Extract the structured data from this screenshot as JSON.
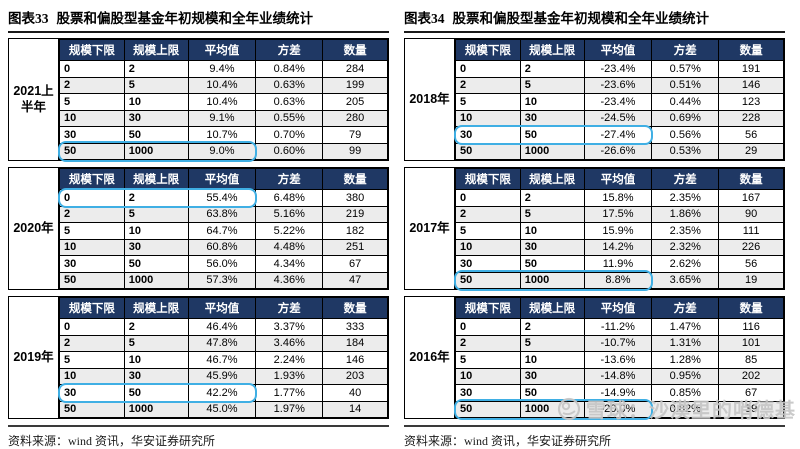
{
  "colors": {
    "header_bg": "#1F3864",
    "header_text": "#FFFFFF",
    "row_alt": "#ECECEC",
    "highlight": "#3FAFE4",
    "watermark": "#C6C6C6"
  },
  "panels": [
    {
      "title_label": "图表33",
      "title_text": "股票和偏股型基金年初规模和全年业绩统计",
      "columns": [
        "规模下限",
        "规模上限",
        "平均值",
        "方差",
        "数量"
      ],
      "tables": [
        {
          "year": "2021上半年",
          "highlight_row": 5,
          "rows": [
            [
              "0",
              "2",
              "9.4%",
              "0.84%",
              "284"
            ],
            [
              "2",
              "5",
              "10.4%",
              "0.63%",
              "199"
            ],
            [
              "5",
              "10",
              "10.4%",
              "0.63%",
              "205"
            ],
            [
              "10",
              "30",
              "9.1%",
              "0.55%",
              "280"
            ],
            [
              "30",
              "50",
              "10.7%",
              "0.70%",
              "79"
            ],
            [
              "50",
              "1000",
              "9.0%",
              "0.60%",
              "99"
            ]
          ]
        },
        {
          "year": "2020年",
          "highlight_row": 0,
          "rows": [
            [
              "0",
              "2",
              "55.4%",
              "6.48%",
              "380"
            ],
            [
              "2",
              "5",
              "63.8%",
              "5.16%",
              "219"
            ],
            [
              "5",
              "10",
              "64.7%",
              "5.22%",
              "182"
            ],
            [
              "10",
              "30",
              "60.8%",
              "4.48%",
              "251"
            ],
            [
              "30",
              "50",
              "56.0%",
              "4.34%",
              "67"
            ],
            [
              "50",
              "1000",
              "57.3%",
              "4.36%",
              "47"
            ]
          ]
        },
        {
          "year": "2019年",
          "highlight_row": 4,
          "rows": [
            [
              "0",
              "2",
              "46.4%",
              "3.37%",
              "333"
            ],
            [
              "2",
              "5",
              "47.8%",
              "3.46%",
              "184"
            ],
            [
              "5",
              "10",
              "46.7%",
              "2.24%",
              "146"
            ],
            [
              "10",
              "30",
              "45.9%",
              "1.93%",
              "203"
            ],
            [
              "30",
              "50",
              "42.2%",
              "1.77%",
              "40"
            ],
            [
              "50",
              "1000",
              "45.0%",
              "1.97%",
              "14"
            ]
          ]
        }
      ],
      "source": "资料来源：wind 资讯，华安证券研究所"
    },
    {
      "title_label": "图表34",
      "title_text": "股票和偏股型基金年初规模和全年业绩统计",
      "columns": [
        "规模下限",
        "规模上限",
        "平均值",
        "方差",
        "数量"
      ],
      "tables": [
        {
          "year": "2018年",
          "highlight_row": 4,
          "rows": [
            [
              "0",
              "2",
              "-23.4%",
              "0.57%",
              "191"
            ],
            [
              "2",
              "5",
              "-23.6%",
              "0.51%",
              "146"
            ],
            [
              "5",
              "10",
              "-23.4%",
              "0.44%",
              "123"
            ],
            [
              "10",
              "30",
              "-24.5%",
              "0.69%",
              "228"
            ],
            [
              "30",
              "50",
              "-27.4%",
              "0.56%",
              "56"
            ],
            [
              "50",
              "1000",
              "-26.6%",
              "0.53%",
              "29"
            ]
          ]
        },
        {
          "year": "2017年",
          "highlight_row": 5,
          "rows": [
            [
              "0",
              "2",
              "15.8%",
              "2.35%",
              "167"
            ],
            [
              "2",
              "5",
              "17.5%",
              "1.86%",
              "90"
            ],
            [
              "5",
              "10",
              "15.9%",
              "2.35%",
              "111"
            ],
            [
              "10",
              "30",
              "14.2%",
              "2.32%",
              "226"
            ],
            [
              "30",
              "50",
              "11.9%",
              "2.62%",
              "56"
            ],
            [
              "50",
              "1000",
              "8.8%",
              "3.65%",
              "19"
            ]
          ]
        },
        {
          "year": "2016年",
          "highlight_row": 5,
          "rows": [
            [
              "0",
              "2",
              "-11.2%",
              "1.47%",
              "116"
            ],
            [
              "2",
              "5",
              "-10.7%",
              "1.31%",
              "101"
            ],
            [
              "5",
              "10",
              "-13.6%",
              "1.28%",
              "85"
            ],
            [
              "10",
              "30",
              "-14.8%",
              "0.95%",
              "202"
            ],
            [
              "30",
              "50",
              "-14.9%",
              "0.85%",
              "67"
            ],
            [
              "50",
              "1000",
              "-20.0%",
              "0.82%",
              "39"
            ]
          ]
        }
      ],
      "source": "资料来源：wind 资讯，华安证券研究所"
    }
  ],
  "watermark": {
    "icon": "xueqiu-logo",
    "text": "雪球：沙漠里的哨德基"
  }
}
